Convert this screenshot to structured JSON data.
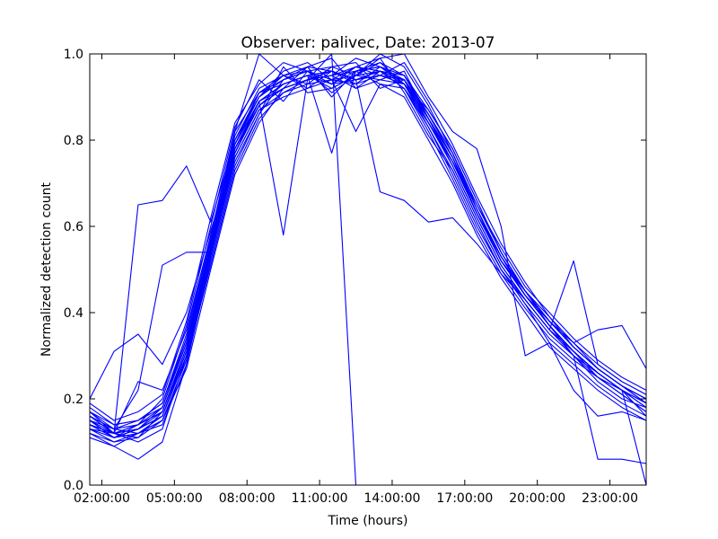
{
  "chart_data": {
    "type": "line",
    "title": "Observer: palivec, Date: 2013-07",
    "xlabel": "Time (hours)",
    "ylabel": "Normalized detection count",
    "x_unit": "hour of day",
    "xlim": [
      1.5,
      24.5
    ],
    "ylim": [
      0.0,
      1.0
    ],
    "x_ticks": [
      {
        "value": 2,
        "label": "02:00:00"
      },
      {
        "value": 5,
        "label": "05:00:00"
      },
      {
        "value": 8,
        "label": "08:00:00"
      },
      {
        "value": 11,
        "label": "11:00:00"
      },
      {
        "value": 14,
        "label": "14:00:00"
      },
      {
        "value": 17,
        "label": "17:00:00"
      },
      {
        "value": 20,
        "label": "20:00:00"
      },
      {
        "value": 23,
        "label": "23:00:00"
      }
    ],
    "y_ticks": [
      {
        "value": 0.0,
        "label": "0.0"
      },
      {
        "value": 0.2,
        "label": "0.2"
      },
      {
        "value": 0.4,
        "label": "0.4"
      },
      {
        "value": 0.6,
        "label": "0.6"
      },
      {
        "value": 0.8,
        "label": "0.8"
      },
      {
        "value": 1.0,
        "label": "1.0"
      }
    ],
    "grid": false,
    "legend": "none",
    "line_color": "#0000ff",
    "x": [
      1.5,
      2.5,
      3.5,
      4.5,
      5.5,
      6.5,
      7.5,
      8.5,
      9.5,
      10.5,
      11.5,
      12.5,
      13.5,
      14.5,
      15.5,
      16.5,
      17.5,
      18.5,
      19.5,
      20.5,
      21.5,
      22.5,
      23.5,
      24.5
    ],
    "series": [
      {
        "values": [
          0.14,
          0.12,
          0.1,
          0.13,
          0.3,
          0.55,
          0.78,
          0.88,
          0.93,
          0.95,
          0.93,
          0.96,
          0.98,
          0.95,
          0.86,
          0.76,
          0.63,
          0.52,
          0.45,
          0.37,
          0.31,
          0.26,
          0.22,
          0.19
        ]
      },
      {
        "values": [
          0.17,
          0.13,
          0.14,
          0.18,
          0.34,
          0.57,
          0.8,
          0.9,
          0.96,
          0.98,
          0.94,
          0.93,
          0.95,
          0.93,
          0.87,
          0.78,
          0.66,
          0.54,
          0.45,
          0.39,
          0.32,
          0.27,
          0.23,
          0.2
        ]
      },
      {
        "values": [
          0.12,
          0.1,
          0.12,
          0.15,
          0.29,
          0.51,
          0.73,
          0.85,
          0.91,
          0.94,
          0.95,
          0.99,
          0.97,
          0.93,
          0.83,
          0.72,
          0.6,
          0.5,
          0.42,
          0.35,
          0.3,
          0.24,
          0.2,
          0.18
        ]
      },
      {
        "values": [
          0.19,
          0.15,
          0.17,
          0.21,
          0.38,
          0.62,
          0.84,
          0.93,
          0.98,
          0.96,
          0.91,
          0.95,
          1.0,
          0.97,
          0.88,
          0.77,
          0.64,
          0.53,
          0.44,
          0.38,
          0.33,
          0.28,
          0.24,
          0.21
        ]
      },
      {
        "values": [
          0.15,
          0.11,
          0.13,
          0.16,
          0.31,
          0.54,
          0.76,
          0.87,
          0.9,
          0.92,
          0.96,
          0.94,
          0.96,
          0.92,
          0.82,
          0.71,
          0.59,
          0.49,
          0.41,
          0.34,
          0.29,
          0.25,
          0.21,
          0.17
        ]
      },
      {
        "values": [
          0.13,
          0.12,
          0.11,
          0.17,
          0.32,
          0.56,
          0.79,
          0.91,
          0.94,
          0.97,
          0.99,
          0.92,
          0.94,
          0.96,
          0.85,
          0.74,
          0.62,
          0.51,
          0.43,
          0.36,
          0.31,
          0.25,
          0.22,
          0.16
        ]
      },
      {
        "values": [
          0.18,
          0.14,
          0.15,
          0.19,
          0.35,
          0.58,
          0.81,
          0.92,
          0.95,
          0.93,
          0.97,
          0.98,
          0.92,
          0.94,
          0.84,
          0.75,
          0.65,
          0.55,
          0.46,
          0.4,
          0.34,
          0.29,
          0.25,
          0.22
        ]
      },
      {
        "values": [
          0.16,
          0.13,
          0.12,
          0.14,
          0.28,
          0.53,
          0.75,
          0.86,
          0.97,
          0.91,
          0.92,
          0.95,
          0.99,
          0.91,
          0.81,
          0.73,
          0.61,
          0.5,
          0.42,
          0.33,
          0.28,
          0.23,
          0.19,
          0.16
        ]
      },
      {
        "values": [
          0.14,
          0.11,
          0.14,
          0.2,
          0.37,
          0.6,
          0.83,
          0.94,
          0.89,
          0.96,
          0.93,
          0.97,
          0.95,
          0.98,
          0.89,
          0.79,
          0.67,
          0.56,
          0.47,
          0.39,
          0.33,
          0.27,
          0.23,
          0.19
        ]
      },
      {
        "values": [
          0.13,
          0.1,
          0.11,
          0.15,
          0.27,
          0.5,
          0.72,
          0.84,
          0.92,
          0.97,
          0.9,
          0.96,
          0.93,
          0.9,
          0.8,
          0.7,
          0.58,
          0.48,
          0.4,
          0.32,
          0.27,
          0.22,
          0.18,
          0.15
        ]
      },
      {
        "values": [
          0.2,
          0.31,
          0.35,
          0.28,
          0.4,
          0.59,
          0.77,
          0.89,
          0.92,
          0.94,
          0.96,
          0.93,
          0.97,
          0.94,
          0.86,
          0.77,
          0.64,
          0.52,
          0.44,
          0.37,
          0.3,
          0.26,
          0.22,
          0.18
        ]
      },
      {
        "values": [
          0.16,
          0.12,
          0.65,
          0.66,
          0.74,
          0.61,
          0.8,
          0.9,
          0.95,
          0.92,
          0.94,
          0.97,
          0.96,
          0.95,
          0.87,
          0.78,
          0.66,
          0.54,
          0.45,
          0.38,
          0.32,
          0.27,
          0.23,
          0.2
        ]
      },
      {
        "values": [
          0.15,
          0.13,
          0.22,
          0.51,
          0.54,
          0.54,
          0.82,
          0.91,
          0.93,
          0.95,
          0.92,
          0.95,
          0.98,
          0.93,
          0.85,
          0.76,
          0.63,
          0.53,
          0.45,
          0.38,
          0.32,
          0.27,
          0.23,
          0.19
        ]
      },
      {
        "values": [
          0.12,
          0.09,
          0.06,
          0.1,
          0.28,
          0.52,
          0.74,
          0.86,
          0.94,
          0.96,
          0.93,
          0.94,
          0.96,
          0.94,
          0.84,
          0.74,
          0.62,
          0.51,
          0.43,
          0.36,
          0.3,
          0.25,
          0.21,
          0.17
        ]
      },
      {
        "values": [
          0.11,
          0.09,
          0.12,
          0.16,
          0.3,
          0.54,
          0.77,
          0.88,
          0.92,
          0.94,
          0.95,
          0.96,
          0.97,
          0.95,
          0.85,
          0.75,
          0.63,
          0.52,
          0.44,
          0.37,
          0.31,
          0.26,
          0.22,
          0.0
        ]
      },
      {
        "values": [
          0.17,
          0.12,
          0.24,
          0.22,
          0.36,
          0.58,
          0.82,
          1.0,
          0.95,
          0.97,
          0.96,
          0.94,
          0.95,
          0.94,
          0.86,
          0.77,
          0.65,
          0.54,
          0.45,
          0.38,
          0.32,
          0.27,
          0.23,
          0.2
        ]
      },
      {
        "values": [
          0.14,
          0.12,
          0.13,
          0.18,
          0.33,
          0.56,
          0.79,
          0.89,
          0.58,
          0.94,
          0.95,
          0.92,
          0.96,
          0.93,
          0.84,
          0.75,
          0.63,
          0.52,
          0.44,
          0.37,
          0.31,
          0.26,
          0.22,
          0.18
        ]
      },
      {
        "values": [
          0.15,
          0.12,
          0.14,
          0.17,
          0.32,
          0.55,
          0.78,
          0.89,
          0.93,
          0.95,
          0.77,
          0.96,
          0.97,
          0.95,
          0.86,
          0.76,
          0.64,
          0.53,
          0.45,
          0.38,
          0.32,
          0.27,
          0.23,
          0.19
        ]
      },
      {
        "values": [
          0.16,
          0.13,
          0.15,
          0.19,
          0.34,
          0.57,
          0.8,
          0.91,
          0.95,
          0.96,
          0.94,
          0.82,
          0.93,
          0.92,
          0.84,
          0.75,
          0.63,
          0.52,
          0.44,
          0.37,
          0.31,
          0.26,
          0.22,
          0.19
        ]
      },
      {
        "values": [
          0.15,
          0.11,
          0.13,
          0.17,
          0.31,
          0.55,
          0.78,
          0.89,
          0.93,
          0.95,
          0.96,
          0.94,
          0.68,
          0.66,
          0.61,
          0.62,
          0.56,
          0.49,
          0.43,
          0.36,
          0.31,
          0.26,
          0.22,
          0.19
        ]
      },
      {
        "values": [
          0.14,
          0.12,
          0.13,
          0.16,
          0.3,
          0.54,
          0.77,
          0.88,
          0.92,
          0.94,
          0.95,
          0.97,
          0.99,
          1.0,
          0.9,
          0.82,
          0.78,
          0.6,
          0.3,
          0.33,
          0.22,
          0.16,
          0.17,
          0.15
        ]
      },
      {
        "values": [
          0.13,
          0.11,
          0.12,
          0.15,
          0.29,
          0.53,
          0.76,
          0.87,
          0.91,
          0.93,
          0.94,
          0.95,
          0.96,
          0.92,
          0.83,
          0.73,
          0.61,
          0.5,
          0.43,
          0.36,
          0.52,
          0.28,
          0.24,
          0.21
        ]
      },
      {
        "values": [
          0.17,
          0.14,
          0.15,
          0.18,
          0.33,
          0.56,
          0.79,
          0.9,
          0.94,
          0.96,
          0.97,
          0.95,
          0.94,
          0.93,
          0.85,
          0.76,
          0.64,
          0.53,
          0.45,
          0.38,
          0.33,
          0.36,
          0.37,
          0.27
        ]
      },
      {
        "values": [
          0.16,
          0.12,
          0.14,
          0.17,
          0.32,
          0.55,
          0.78,
          0.89,
          0.93,
          0.95,
          0.96,
          0.94,
          0.95,
          0.94,
          0.85,
          0.75,
          0.63,
          0.52,
          0.44,
          0.37,
          0.3,
          0.06,
          0.06,
          0.05
        ]
      },
      {
        "values": [
          0.14,
          0.11,
          0.13,
          0.16,
          0.3,
          0.54,
          0.77,
          0.88,
          0.92,
          0.94,
          1.0,
          0.0,
          0.0,
          0.0,
          0.0,
          0.0,
          0.0,
          0.0,
          0.0,
          0.0,
          0.0,
          0.0,
          0.0,
          0.0
        ]
      }
    ]
  }
}
